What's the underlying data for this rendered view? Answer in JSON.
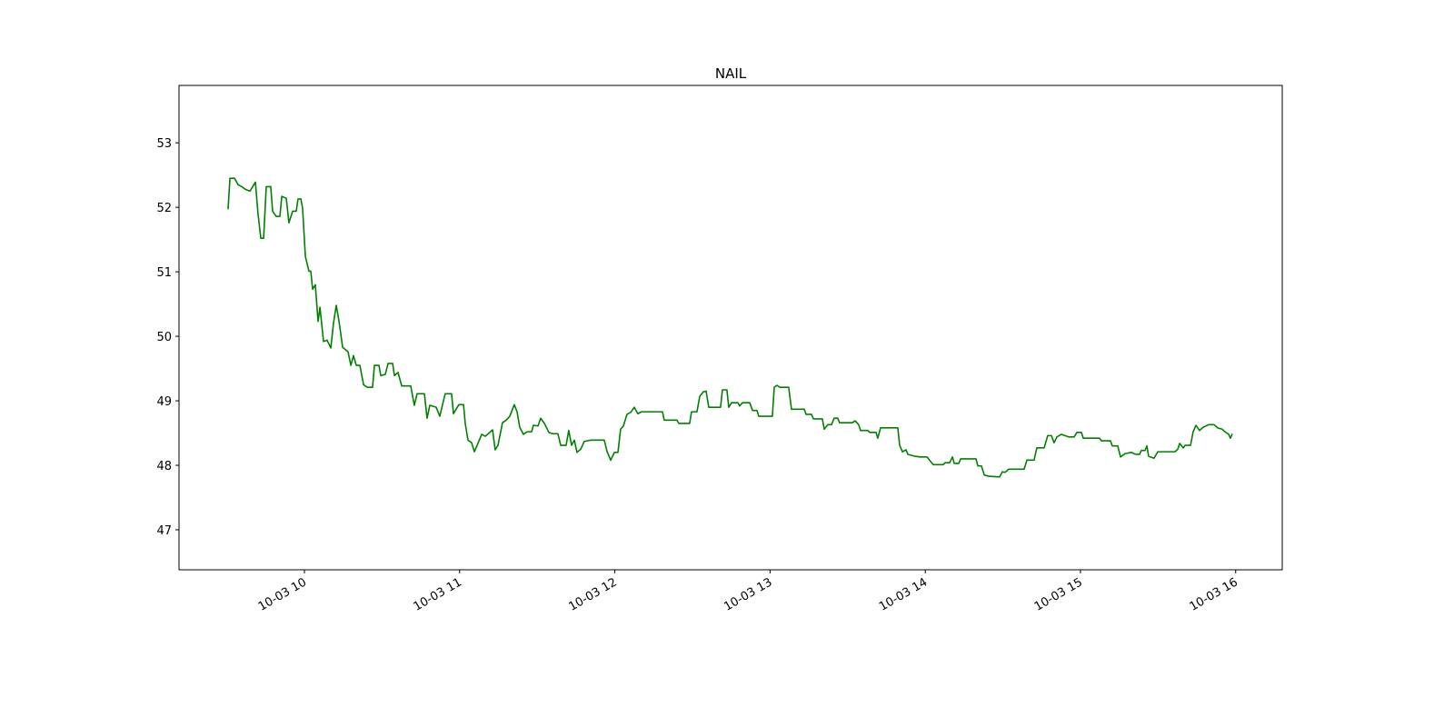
{
  "chart_data": {
    "type": "line",
    "title": "NAIL",
    "color": "#008000",
    "x": [
      9.508,
      9.52,
      9.549,
      9.573,
      9.596,
      9.619,
      9.649,
      9.684,
      9.701,
      9.719,
      9.737,
      9.754,
      9.783,
      9.795,
      9.818,
      9.842,
      9.854,
      9.883,
      9.9,
      9.924,
      9.947,
      9.959,
      9.977,
      9.988,
      10.006,
      10.029,
      10.041,
      10.053,
      10.07,
      10.088,
      10.1,
      10.123,
      10.146,
      10.17,
      10.187,
      10.205,
      10.223,
      10.246,
      10.281,
      10.299,
      10.316,
      10.334,
      10.357,
      10.381,
      10.404,
      10.439,
      10.451,
      10.48,
      10.492,
      10.521,
      10.539,
      10.568,
      10.58,
      10.603,
      10.627,
      10.685,
      10.708,
      10.726,
      10.773,
      10.79,
      10.808,
      10.849,
      10.872,
      10.907,
      10.948,
      10.96,
      10.995,
      11.025,
      11.036,
      11.054,
      11.077,
      11.095,
      11.118,
      11.142,
      11.165,
      11.194,
      11.212,
      11.229,
      11.247,
      11.276,
      11.3,
      11.323,
      11.352,
      11.37,
      11.387,
      11.411,
      11.434,
      11.464,
      11.475,
      11.505,
      11.522,
      11.546,
      11.575,
      11.598,
      11.633,
      11.651,
      11.686,
      11.703,
      11.721,
      11.739,
      11.756,
      11.78,
      11.803,
      11.844,
      11.932,
      11.95,
      11.973,
      11.997,
      12.02,
      12.037,
      12.055,
      12.078,
      12.102,
      12.125,
      12.148,
      12.172,
      12.307,
      12.318,
      12.4,
      12.412,
      12.482,
      12.494,
      12.529,
      12.547,
      12.57,
      12.588,
      12.605,
      12.681,
      12.693,
      12.722,
      12.734,
      12.752,
      12.793,
      12.804,
      12.822,
      12.869,
      12.887,
      12.916,
      12.927,
      13.015,
      13.027,
      13.044,
      13.062,
      13.12,
      13.138,
      13.22,
      13.232,
      13.267,
      13.279,
      13.337,
      13.349,
      13.372,
      13.396,
      13.413,
      13.436,
      13.448,
      13.53,
      13.548,
      13.571,
      13.583,
      13.63,
      13.642,
      13.683,
      13.694,
      13.712,
      13.823,
      13.835,
      13.853,
      13.876,
      13.888,
      13.934,
      13.964,
      14.011,
      14.034,
      14.052,
      14.116,
      14.128,
      14.157,
      14.175,
      14.187,
      14.216,
      14.228,
      14.327,
      14.339,
      14.362,
      14.38,
      14.409,
      14.479,
      14.497,
      14.514,
      14.538,
      14.637,
      14.655,
      14.701,
      14.719,
      14.766,
      14.789,
      14.813,
      14.83,
      14.848,
      14.877,
      14.924,
      14.959,
      14.977,
      15.006,
      15.018,
      15.123,
      15.135,
      15.193,
      15.205,
      15.24,
      15.258,
      15.287,
      15.328,
      15.357,
      15.381,
      15.392,
      15.416,
      15.428,
      15.439,
      15.474,
      15.498,
      15.609,
      15.627,
      15.639,
      15.662,
      15.674,
      15.709,
      15.726,
      15.744,
      15.767,
      15.791,
      15.826,
      15.861,
      15.884,
      15.913,
      15.931,
      15.955,
      15.966,
      15.978
    ],
    "values": [
      51.97,
      52.45,
      52.45,
      52.35,
      52.32,
      52.28,
      52.25,
      52.39,
      51.9,
      51.52,
      51.52,
      52.32,
      52.32,
      51.94,
      51.86,
      51.86,
      52.17,
      52.14,
      51.76,
      51.94,
      51.94,
      52.13,
      52.13,
      51.99,
      51.24,
      51.01,
      51.01,
      50.73,
      50.8,
      50.23,
      50.45,
      49.92,
      49.94,
      49.82,
      50.2,
      50.48,
      50.23,
      49.83,
      49.76,
      49.55,
      49.7,
      49.55,
      49.55,
      49.25,
      49.21,
      49.21,
      49.55,
      49.55,
      49.39,
      49.41,
      49.58,
      49.58,
      49.39,
      49.44,
      49.23,
      49.23,
      48.93,
      49.11,
      49.11,
      48.73,
      48.93,
      48.9,
      48.76,
      49.11,
      49.11,
      48.8,
      48.94,
      48.94,
      48.65,
      48.39,
      48.35,
      48.21,
      48.34,
      48.48,
      48.45,
      48.51,
      48.55,
      48.24,
      48.31,
      48.66,
      48.7,
      48.76,
      48.94,
      48.83,
      48.59,
      48.48,
      48.52,
      48.52,
      48.62,
      48.61,
      48.73,
      48.65,
      48.51,
      48.49,
      48.49,
      48.31,
      48.31,
      48.54,
      48.31,
      48.39,
      48.2,
      48.25,
      48.37,
      48.39,
      48.39,
      48.21,
      48.08,
      48.2,
      48.2,
      48.56,
      48.61,
      48.79,
      48.82,
      48.9,
      48.8,
      48.83,
      48.83,
      48.7,
      48.7,
      48.65,
      48.65,
      48.83,
      48.83,
      49.07,
      49.14,
      49.15,
      48.9,
      48.9,
      49.17,
      49.17,
      48.9,
      48.97,
      48.97,
      48.92,
      48.97,
      48.97,
      48.85,
      48.85,
      48.76,
      48.76,
      49.21,
      49.24,
      49.21,
      49.21,
      48.87,
      48.87,
      48.79,
      48.79,
      48.72,
      48.72,
      48.56,
      48.63,
      48.63,
      48.73,
      48.73,
      48.66,
      48.66,
      48.69,
      48.63,
      48.54,
      48.54,
      48.51,
      48.51,
      48.42,
      48.58,
      48.58,
      48.31,
      48.21,
      48.24,
      48.17,
      48.14,
      48.13,
      48.13,
      48.06,
      48.01,
      48.01,
      48.04,
      48.04,
      48.13,
      48.03,
      48.03,
      48.1,
      48.1,
      47.99,
      47.99,
      47.85,
      47.83,
      47.82,
      47.9,
      47.89,
      47.94,
      47.94,
      48.08,
      48.08,
      48.27,
      48.27,
      48.46,
      48.46,
      48.35,
      48.44,
      48.48,
      48.44,
      48.44,
      48.51,
      48.51,
      48.42,
      48.42,
      48.38,
      48.38,
      48.3,
      48.3,
      48.13,
      48.18,
      48.2,
      48.17,
      48.17,
      48.23,
      48.23,
      48.3,
      48.14,
      48.11,
      48.21,
      48.21,
      48.25,
      48.34,
      48.27,
      48.31,
      48.31,
      48.52,
      48.62,
      48.54,
      48.59,
      48.63,
      48.63,
      48.58,
      48.56,
      48.52,
      48.48,
      48.42,
      48.49
    ],
    "xlim": [
      9.192,
      16.3
    ],
    "xticks": [
      {
        "value": 10,
        "label": "10-03 10"
      },
      {
        "value": 11,
        "label": "10-03 11"
      },
      {
        "value": 12,
        "label": "10-03 12"
      },
      {
        "value": 13,
        "label": "10-03 13"
      },
      {
        "value": 14,
        "label": "10-03 14"
      },
      {
        "value": 15,
        "label": "10-03 15"
      },
      {
        "value": 16,
        "label": "10-03 16"
      }
    ],
    "ylim": [
      46.38,
      53.89
    ],
    "yticks": [
      47,
      48,
      49,
      50,
      51,
      52,
      53
    ],
    "grid": false
  }
}
